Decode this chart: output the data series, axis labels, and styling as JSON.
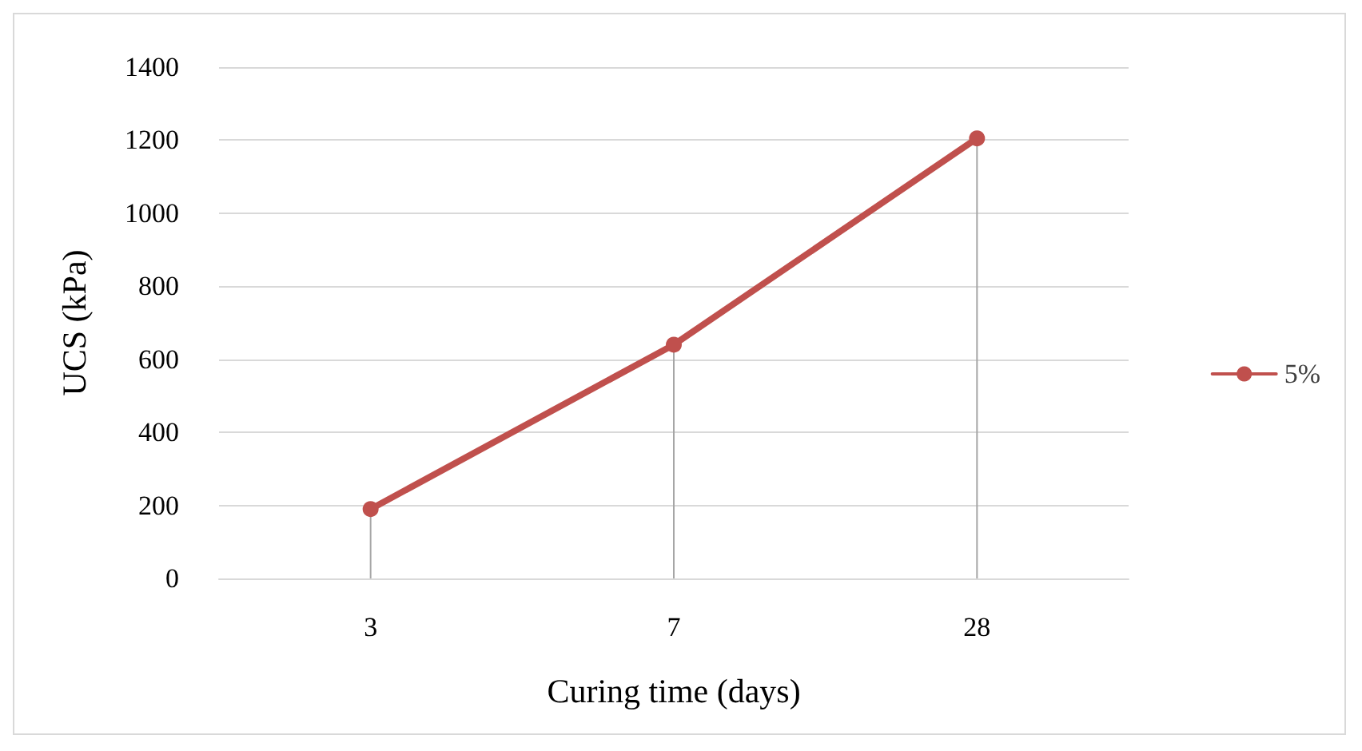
{
  "chart_data": {
    "type": "line",
    "xlabel": "Curing time (days)",
    "ylabel": "UCS (kPa)",
    "categories": [
      "3",
      "7",
      "28"
    ],
    "series": [
      {
        "name": "5%",
        "color": "#c0504d",
        "values": [
          190,
          640,
          1205
        ],
        "errors": [
          [
            0,
            190
          ],
          [
            0,
            640
          ],
          [
            0,
            1205
          ]
        ]
      }
    ],
    "ylim": [
      0,
      1400
    ],
    "yticks": [
      0,
      200,
      400,
      600,
      800,
      {
        "value": 1000,
        "label": "1000"
      },
      {
        "value": 1200,
        "label": "1200"
      },
      {
        "value": 1400,
        "label": "1400"
      }
    ],
    "grid": "y",
    "legend": "right",
    "marker": "circle",
    "line_style": "solid"
  }
}
